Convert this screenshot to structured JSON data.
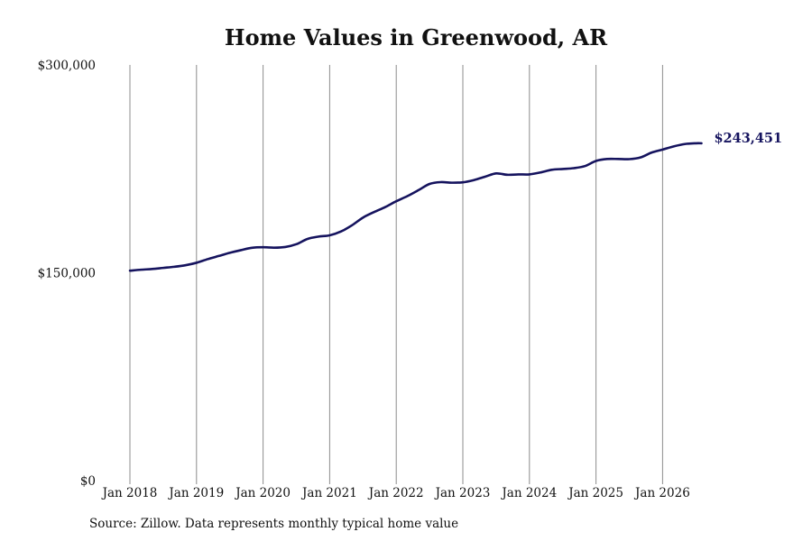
{
  "chart_data": {
    "type": "line",
    "title": "Home Values in Greenwood, AR",
    "xlabel": "",
    "ylabel": "",
    "ylim": [
      0,
      300000
    ],
    "y_ticks": [
      {
        "value": 0,
        "label": "$0"
      },
      {
        "value": 150000,
        "label": "$150,000"
      },
      {
        "value": 300000,
        "label": "$300,000"
      }
    ],
    "x_ticks": [
      {
        "value": 2018,
        "label": "Jan 2018"
      },
      {
        "value": 2019,
        "label": "Jan 2019"
      },
      {
        "value": 2020,
        "label": "Jan 2020"
      },
      {
        "value": 2021,
        "label": "Jan 2021"
      },
      {
        "value": 2022,
        "label": "Jan 2022"
      },
      {
        "value": 2023,
        "label": "Jan 2023"
      },
      {
        "value": 2024,
        "label": "Jan 2024"
      },
      {
        "value": 2025,
        "label": "Jan 2025"
      },
      {
        "value": 2026,
        "label": "Jan 2026"
      }
    ],
    "vertical_grid": true,
    "horizontal_grid": false,
    "line_color": "#15135e",
    "series": [
      {
        "points": [
          [
            "2018-01",
            151500
          ],
          [
            "2018-03",
            152200
          ],
          [
            "2018-05",
            152700
          ],
          [
            "2018-07",
            153500
          ],
          [
            "2018-09",
            154300
          ],
          [
            "2018-11",
            155400
          ],
          [
            "2019-01",
            157200
          ],
          [
            "2019-03",
            159800
          ],
          [
            "2019-05",
            162100
          ],
          [
            "2019-07",
            164400
          ],
          [
            "2019-09",
            166300
          ],
          [
            "2019-11",
            168000
          ],
          [
            "2020-01",
            168400
          ],
          [
            "2020-03",
            168100
          ],
          [
            "2020-05",
            168600
          ],
          [
            "2020-07",
            170600
          ],
          [
            "2020-09",
            174400
          ],
          [
            "2020-11",
            176100
          ],
          [
            "2021-01",
            177000
          ],
          [
            "2021-03",
            179700
          ],
          [
            "2021-05",
            184200
          ],
          [
            "2021-07",
            189800
          ],
          [
            "2021-09",
            193800
          ],
          [
            "2021-11",
            197400
          ],
          [
            "2022-01",
            201600
          ],
          [
            "2022-03",
            205300
          ],
          [
            "2022-05",
            209600
          ],
          [
            "2022-07",
            214100
          ],
          [
            "2022-09",
            215400
          ],
          [
            "2022-11",
            215000
          ],
          [
            "2023-01",
            215300
          ],
          [
            "2023-03",
            216900
          ],
          [
            "2023-05",
            219300
          ],
          [
            "2023-07",
            221700
          ],
          [
            "2023-09",
            220700
          ],
          [
            "2023-11",
            221000
          ],
          [
            "2024-01",
            221000
          ],
          [
            "2024-03",
            222400
          ],
          [
            "2024-05",
            224300
          ],
          [
            "2024-07",
            224900
          ],
          [
            "2024-09",
            225500
          ],
          [
            "2024-11",
            227000
          ],
          [
            "2025-01",
            230700
          ],
          [
            "2025-03",
            232100
          ],
          [
            "2025-05",
            232100
          ],
          [
            "2025-07",
            232000
          ],
          [
            "2025-09",
            233200
          ],
          [
            "2025-11",
            236700
          ],
          [
            "2026-01",
            238900
          ],
          [
            "2026-03",
            241200
          ],
          [
            "2026-05",
            242900
          ],
          [
            "2026-07",
            243451
          ],
          [
            "2026-08",
            243451
          ]
        ]
      }
    ],
    "end_label": "$243,451"
  },
  "footer": {
    "source": "Source: Zillow. Data represents monthly typical home value"
  }
}
